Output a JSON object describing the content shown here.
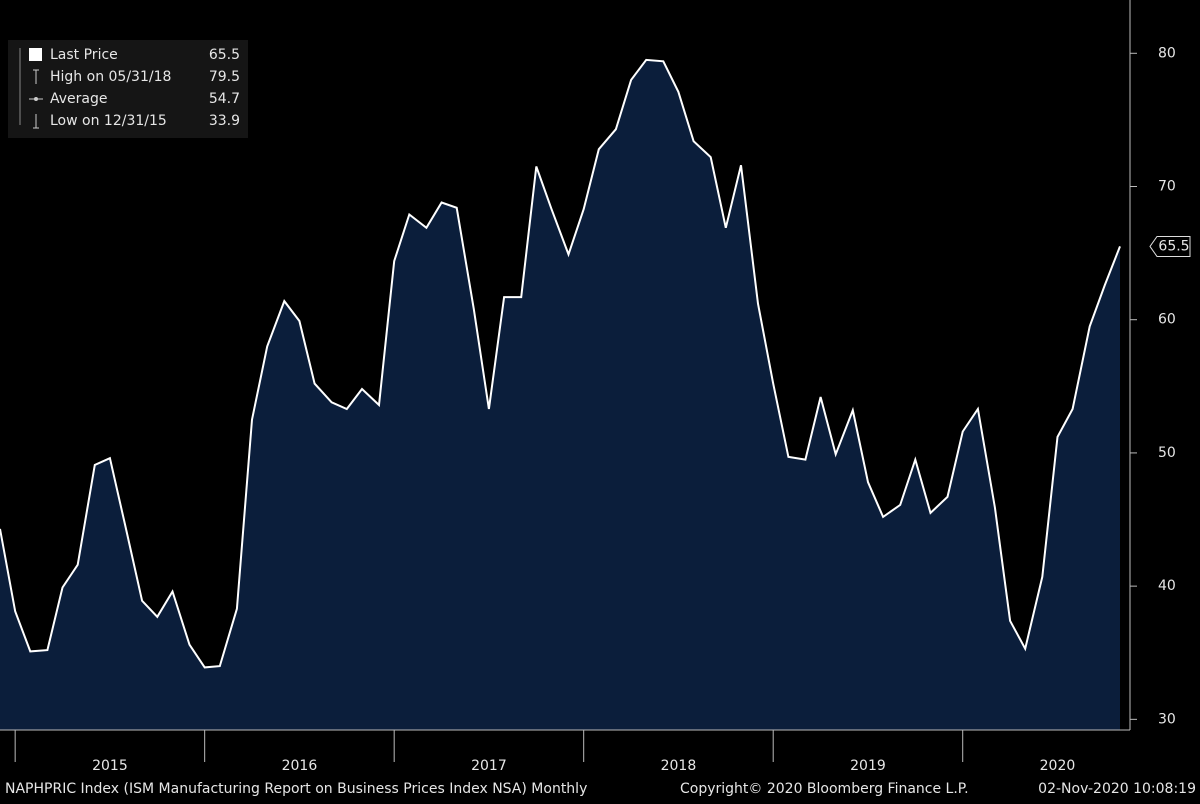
{
  "chart_data": {
    "type": "area",
    "series": [
      {
        "name": "Last Price",
        "color": "#ffffff",
        "fill": "#0b1e3b",
        "x": [
          2014.92,
          2015.0,
          2015.08,
          2015.17,
          2015.25,
          2015.33,
          2015.42,
          2015.5,
          2015.58,
          2015.67,
          2015.75,
          2015.83,
          2015.92,
          2016.0,
          2016.08,
          2016.17,
          2016.25,
          2016.33,
          2016.42,
          2016.5,
          2016.58,
          2016.67,
          2016.75,
          2016.83,
          2016.92,
          2017.0,
          2017.08,
          2017.17,
          2017.25,
          2017.33,
          2017.42,
          2017.5,
          2017.58,
          2017.67,
          2017.75,
          2017.83,
          2017.92,
          2018.0,
          2018.08,
          2018.17,
          2018.25,
          2018.33,
          2018.42,
          2018.5,
          2018.58,
          2018.67,
          2018.75,
          2018.83,
          2018.92,
          2019.0,
          2019.08,
          2019.17,
          2019.25,
          2019.33,
          2019.42,
          2019.5,
          2019.58,
          2019.67,
          2019.75,
          2019.83,
          2019.92,
          2020.0,
          2020.08,
          2020.17,
          2020.25,
          2020.33,
          2020.42,
          2020.5,
          2020.58,
          2020.67,
          2020.75,
          2020.83
        ],
        "values": [
          44.3,
          38.1,
          35.1,
          35.2,
          39.9,
          41.6,
          49.1,
          49.6,
          44.6,
          38.9,
          37.7,
          39.6,
          35.6,
          33.9,
          34.0,
          38.3,
          52.5,
          58.0,
          61.4,
          59.9,
          55.2,
          53.8,
          53.3,
          54.8,
          53.6,
          64.4,
          67.9,
          66.9,
          68.8,
          68.4,
          60.8,
          53.3,
          61.7,
          61.7,
          71.5,
          68.3,
          64.9,
          68.3,
          72.8,
          74.3,
          78.0,
          79.5,
          79.4,
          77.1,
          73.4,
          72.2,
          66.9,
          71.6,
          61.2,
          55.2,
          49.7,
          49.5,
          54.2,
          49.9,
          53.2,
          47.8,
          45.2,
          46.1,
          49.5,
          45.5,
          46.7,
          51.6,
          53.3,
          45.9,
          37.4,
          35.3,
          40.7,
          51.2,
          53.3,
          59.5,
          62.6,
          65.5
        ]
      }
    ],
    "xlim": [
      2014.92,
      2020.83
    ],
    "xticks": [
      2015,
      2016,
      2017,
      2018,
      2019,
      2020
    ],
    "ylim": [
      29.2,
      84
    ],
    "yticks": [
      30,
      40,
      50,
      60,
      70,
      80
    ],
    "legend": [
      {
        "label": "Last Price",
        "value": 65.5
      },
      {
        "label": "High on 05/31/18",
        "value": 79.5
      },
      {
        "label": "Average",
        "value": 54.7
      },
      {
        "label": "Low on 12/31/15",
        "value": 33.9
      }
    ],
    "footer": {
      "index": "NAPHPRIC Index (ISM Manufacturing Report on Business Prices Index NSA)  Monthly",
      "copyright": "Copyright© 2020 Bloomberg Finance L.P.",
      "timestamp": "02-Nov-2020 10:08:19"
    }
  }
}
